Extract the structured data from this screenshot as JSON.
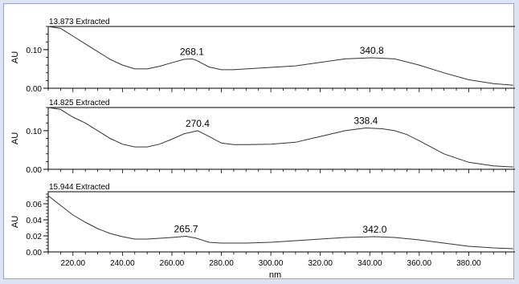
{
  "chart_data": [
    {
      "type": "line",
      "title": "13.873 Extracted",
      "ylabel": "AU",
      "xlim": [
        210,
        400
      ],
      "ylim": [
        0,
        0.16
      ],
      "yticks": [
        0.0,
        0.1
      ],
      "ytick_labels": [
        "0.00",
        "0.10"
      ],
      "x": [
        210,
        215,
        220,
        225,
        230,
        235,
        240,
        245,
        250,
        255,
        260,
        265,
        268.1,
        270,
        275,
        280,
        285,
        290,
        300,
        310,
        320,
        330,
        340.8,
        350,
        360,
        370,
        380,
        390,
        398
      ],
      "y": [
        0.16,
        0.155,
        0.135,
        0.115,
        0.095,
        0.075,
        0.06,
        0.05,
        0.05,
        0.057,
        0.066,
        0.075,
        0.076,
        0.072,
        0.055,
        0.048,
        0.048,
        0.05,
        0.054,
        0.058,
        0.067,
        0.076,
        0.079,
        0.076,
        0.06,
        0.04,
        0.022,
        0.012,
        0.008
      ],
      "peaks": [
        {
          "x": 268.1,
          "label": "268.1"
        },
        {
          "x": 340.8,
          "label": "340.8"
        }
      ]
    },
    {
      "type": "line",
      "title": "14.825 Extracted",
      "ylabel": "AU",
      "xlim": [
        210,
        400
      ],
      "ylim": [
        0,
        0.16
      ],
      "yticks": [
        0.0,
        0.1
      ],
      "ytick_labels": [
        "0.00",
        "0.10"
      ],
      "x": [
        210,
        215,
        220,
        225,
        230,
        235,
        240,
        245,
        250,
        255,
        260,
        265,
        270.4,
        275,
        280,
        285,
        290,
        300,
        310,
        320,
        330,
        338.4,
        345,
        350,
        355,
        360,
        370,
        380,
        390,
        398
      ],
      "y": [
        0.16,
        0.155,
        0.135,
        0.12,
        0.1,
        0.08,
        0.065,
        0.058,
        0.058,
        0.065,
        0.078,
        0.092,
        0.1,
        0.085,
        0.068,
        0.064,
        0.064,
        0.065,
        0.07,
        0.085,
        0.1,
        0.107,
        0.105,
        0.1,
        0.09,
        0.074,
        0.04,
        0.018,
        0.009,
        0.006
      ],
      "peaks": [
        {
          "x": 270.4,
          "label": "270.4"
        },
        {
          "x": 338.4,
          "label": "338.4"
        }
      ]
    },
    {
      "type": "line",
      "title": "15.944 Extracted",
      "ylabel": "AU",
      "xlabel": "nm",
      "xlim": [
        210,
        400
      ],
      "ylim": [
        0,
        0.075
      ],
      "xticks": [
        220,
        240,
        260,
        280,
        300,
        320,
        340,
        360,
        380
      ],
      "xtick_labels": [
        "220.00",
        "240.00",
        "260.00",
        "280.00",
        "300.00",
        "320.00",
        "340.00",
        "360.00",
        "380.00"
      ],
      "yticks": [
        0.0,
        0.02,
        0.04,
        0.06
      ],
      "ytick_labels": [
        "0.00",
        "0.02",
        "0.04",
        "0.06"
      ],
      "x": [
        210,
        215,
        220,
        225,
        230,
        235,
        240,
        245,
        250,
        255,
        260,
        265.7,
        270,
        275,
        280,
        290,
        300,
        310,
        320,
        330,
        342.0,
        350,
        360,
        370,
        380,
        390,
        398
      ],
      "y": [
        0.07,
        0.058,
        0.046,
        0.037,
        0.029,
        0.023,
        0.019,
        0.016,
        0.016,
        0.017,
        0.018,
        0.0195,
        0.017,
        0.012,
        0.011,
        0.011,
        0.012,
        0.014,
        0.016,
        0.018,
        0.019,
        0.018,
        0.015,
        0.011,
        0.007,
        0.005,
        0.004
      ],
      "peaks": [
        {
          "x": 265.7,
          "label": "265.7"
        },
        {
          "x": 342.0,
          "label": "342.0"
        }
      ]
    }
  ]
}
